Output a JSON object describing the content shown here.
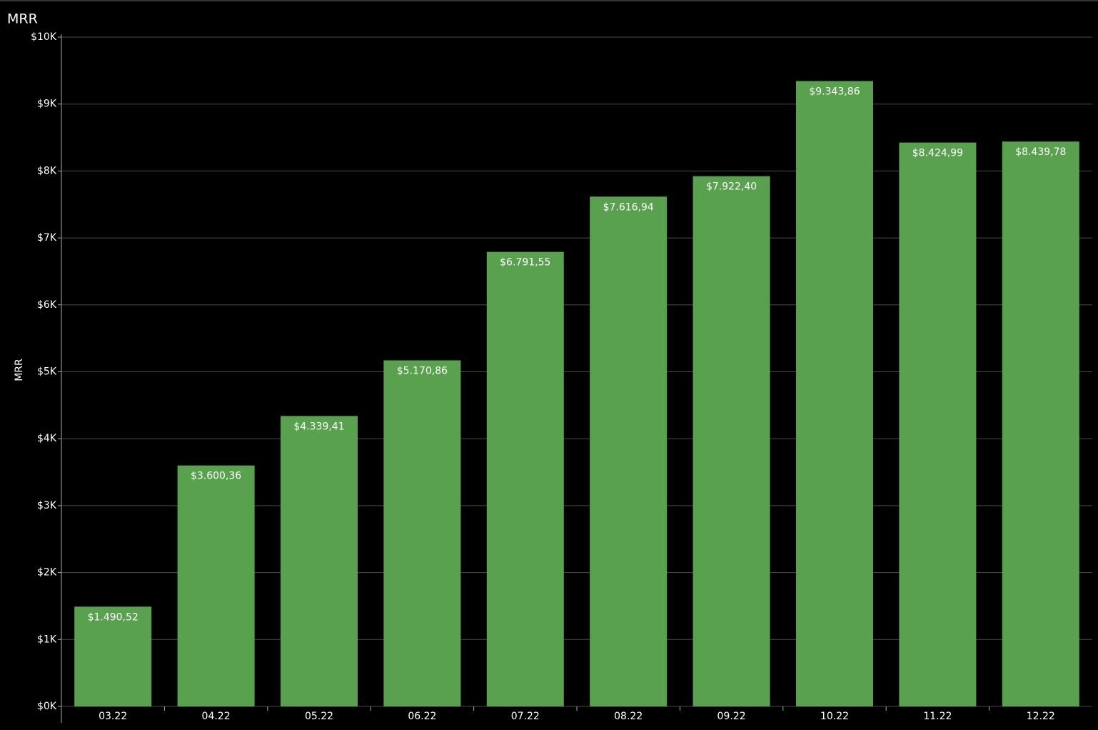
{
  "chart_data": {
    "type": "bar",
    "title": "MRR",
    "y_label": "MRR",
    "categories": [
      "03.22",
      "04.22",
      "05.22",
      "06.22",
      "07.22",
      "08.22",
      "09.22",
      "10.22",
      "11.22",
      "12.22"
    ],
    "values": [
      1490.52,
      3600.36,
      4339.41,
      5170.86,
      6791.55,
      7616.94,
      7922.4,
      9343.86,
      8424.99,
      8439.78
    ],
    "value_labels": [
      "$1.490,52",
      "$3.600,36",
      "$4.339,41",
      "$5.170,86",
      "$6.791,55",
      "$7.616,94",
      "$7.922,40",
      "$9.343,86",
      "$8.424,99",
      "$8.439,78"
    ],
    "color": "#59a14f",
    "ylim": [
      0,
      10000
    ],
    "yticks": [
      {
        "value": 0,
        "label": "$0K"
      },
      {
        "value": 1000,
        "label": "$1K"
      },
      {
        "value": 2000,
        "label": "$2K"
      },
      {
        "value": 3000,
        "label": "$3K"
      },
      {
        "value": 4000,
        "label": "$4K"
      },
      {
        "value": 5000,
        "label": "$5K"
      },
      {
        "value": 6000,
        "label": "$6K"
      },
      {
        "value": 7000,
        "label": "$7K"
      },
      {
        "value": 8000,
        "label": "$8K"
      },
      {
        "value": 9000,
        "label": "$9K"
      },
      {
        "value": 10000,
        "label": "$10K"
      }
    ],
    "grid": true
  }
}
